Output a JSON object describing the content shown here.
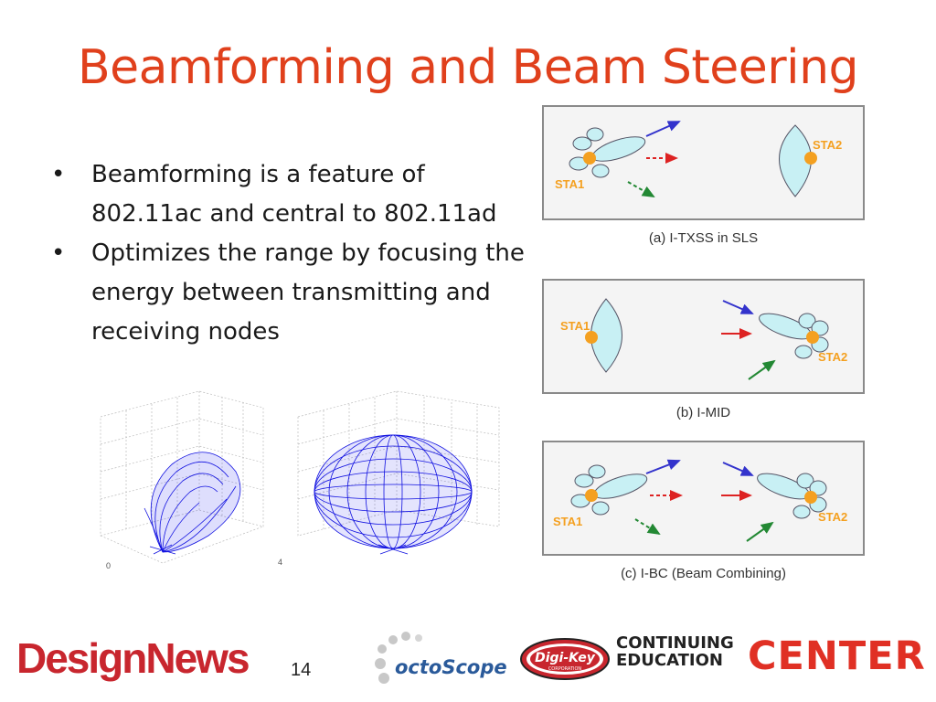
{
  "slide": {
    "title": "Beamforming and Beam Steering",
    "bullets": [
      "Beamforming is a feature of 802.11ac and central to 802.11ad",
      "Optimizes the range by focusing the energy between transmitting and receiving nodes"
    ],
    "page_number": "14"
  },
  "diagrams": [
    {
      "caption": "(a) I-TXSS in SLS",
      "left_label": "STA1",
      "right_label": "STA2"
    },
    {
      "caption": "(b) I-MID",
      "left_label": "STA1",
      "right_label": "STA2"
    },
    {
      "caption": "(c) I-BC (Beam Combining)",
      "left_label": "STA1",
      "right_label": "STA2"
    }
  ],
  "plot_axis": {
    "tick_left": "0",
    "tick_right": "4"
  },
  "logos": {
    "designnews_a": "Design",
    "designnews_b": "News",
    "octoscope": "octoScope",
    "digikey": "Digi-Key",
    "digikey_sub": "CORPORATION",
    "cec_line1": "CONTINUING",
    "cec_line2": "EDUCATION",
    "cec_center": "CENTER"
  },
  "colors": {
    "title": "#e0401c",
    "pattern_fill": "#c8f0f4",
    "node": "#f4a020",
    "center_red": "#e03024"
  }
}
